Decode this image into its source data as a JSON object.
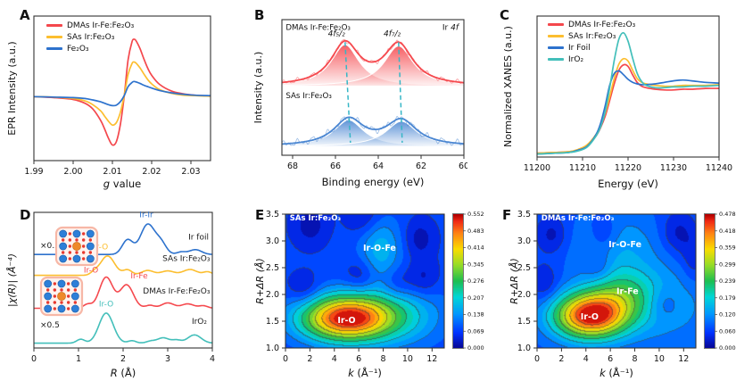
{
  "figure": {
    "background": "#ffffff"
  },
  "chart_data": [
    {
      "panel": "A",
      "type": "line",
      "xlabel_italic": "g",
      "xlabel_rest": " value",
      "ylabel": "EPR Intensity (a.u.)",
      "xlim": [
        1.99,
        2.035
      ],
      "ylim": [
        -1.35,
        1.7
      ],
      "xtick_vals": [
        1.99,
        2.0,
        2.01,
        2.02,
        2.03
      ],
      "xticks": [
        "1.99",
        "2.00",
        "2.01",
        "2.02",
        "2.03"
      ],
      "x": [
        1.99,
        1.995,
        2.0,
        2.003,
        2.005,
        2.007,
        2.008,
        2.009,
        2.01,
        2.011,
        2.012,
        2.013,
        2.014,
        2.015,
        2.0155,
        2.016,
        2.017,
        2.018,
        2.019,
        2.02,
        2.022,
        2.025,
        2.028,
        2.031,
        2.035
      ],
      "series": [
        {
          "name": "DMAs Ir-Fe:Fe₂O₃",
          "color": "#f4474c",
          "y": [
            0,
            -0.02,
            -0.06,
            -0.14,
            -0.26,
            -0.5,
            -0.68,
            -0.88,
            -1.02,
            -0.95,
            -0.6,
            0.0,
            0.78,
            1.16,
            1.21,
            1.18,
            1.02,
            0.8,
            0.6,
            0.45,
            0.26,
            0.12,
            0.06,
            0.03,
            0.01
          ]
        },
        {
          "name": "SAs Ir:Fe₂O₃",
          "color": "#fcbe2f",
          "y": [
            0,
            -0.01,
            -0.04,
            -0.09,
            -0.17,
            -0.3,
            -0.41,
            -0.52,
            -0.6,
            -0.55,
            -0.34,
            0.02,
            0.47,
            0.7,
            0.73,
            0.71,
            0.61,
            0.48,
            0.36,
            0.27,
            0.15,
            0.07,
            0.03,
            0.02,
            0.01
          ]
        },
        {
          "name": "Fe₂O₃",
          "color": "#2d72cd",
          "y": [
            0,
            -0.01,
            -0.02,
            -0.04,
            -0.07,
            -0.11,
            -0.14,
            -0.17,
            -0.19,
            -0.18,
            -0.11,
            0.02,
            0.21,
            0.3,
            0.32,
            0.31,
            0.28,
            0.24,
            0.21,
            0.18,
            0.13,
            0.08,
            0.05,
            0.03,
            0.02
          ]
        }
      ]
    },
    {
      "panel": "B",
      "type": "spectra",
      "xlabel": "Binding energy (eV)",
      "ylabel": "Intensity (a.u.)",
      "xlim": [
        68.5,
        60
      ],
      "ylim": [
        0,
        1.08
      ],
      "xtick_vals": [
        68,
        66,
        64,
        62,
        60
      ],
      "xticks": [
        "68",
        "66",
        "64",
        "62",
        "60"
      ],
      "corner_prefix": "Ir ",
      "corner_italic": "4f",
      "dash_color": "#35b6c6",
      "spectra": [
        {
          "name": "SAs Ir:Fe₂O₃",
          "color": "#4a86d2",
          "baseline": 0.07,
          "noise": 1.0,
          "peaks": [
            {
              "c": 65.38,
              "w": 0.85,
              "a": 0.21
            },
            {
              "c": 62.92,
              "w": 0.88,
              "a": 0.2
            }
          ]
        },
        {
          "name": "DMAs Ir-Fe:Fe₂O₃",
          "color": "#f5494e",
          "baseline": 0.55,
          "noise": 0.7,
          "peaks": [
            {
              "c": 65.55,
              "w": 0.8,
              "a": 0.33
            },
            {
              "c": 63.05,
              "w": 0.82,
              "a": 0.32
            }
          ]
        }
      ],
      "peak_labels": [
        {
          "text": "4f₅/₂",
          "x": 65.95,
          "y": 0.95
        },
        {
          "text": "4f₇/₂",
          "x": 63.35,
          "y": 0.95
        }
      ],
      "inner_labels": [
        {
          "text": "DMAs Ir-Fe:Fe₂O₃",
          "x": 68.32,
          "y": 1.0
        },
        {
          "text": "SAs Ir:Fe₂O₃",
          "x": 68.32,
          "y": 0.455
        }
      ],
      "dashed": [
        {
          "xt": 65.55,
          "xb": 65.3,
          "yt": 0.9,
          "yb": 0.1
        },
        {
          "xt": 63.05,
          "xb": 62.88,
          "yt": 0.9,
          "yb": 0.1
        }
      ]
    },
    {
      "panel": "C",
      "type": "line",
      "xlabel": "Energy (eV)",
      "ylabel": "Normalized XANES (a.u.)",
      "xlim": [
        11200,
        11240
      ],
      "ylim": [
        0,
        1.85
      ],
      "xtick_vals": [
        11200,
        11210,
        11220,
        11230,
        11240
      ],
      "xticks": [
        "11200",
        "11210",
        "11220",
        "11230",
        "11240"
      ],
      "x": [
        11200,
        11204,
        11207,
        11209,
        11211,
        11213,
        11214,
        11215,
        11216,
        11217,
        11218,
        11219,
        11220,
        11221,
        11222,
        11223,
        11224,
        11226,
        11228,
        11230,
        11232,
        11234,
        11237,
        11240
      ],
      "series": [
        {
          "name": "DMAs Ir-Fe:Fe₂O₃",
          "color": "#f4474c",
          "y": [
            0.05,
            0.06,
            0.07,
            0.09,
            0.15,
            0.28,
            0.39,
            0.54,
            0.75,
            0.97,
            1.14,
            1.21,
            1.19,
            1.08,
            0.98,
            0.93,
            0.91,
            0.89,
            0.88,
            0.88,
            0.89,
            0.89,
            0.9,
            0.9
          ]
        },
        {
          "name": "SAs Ir:Fe₂O₃",
          "color": "#fcbe2f",
          "y": [
            0.05,
            0.06,
            0.07,
            0.1,
            0.16,
            0.3,
            0.42,
            0.58,
            0.8,
            1.04,
            1.22,
            1.29,
            1.26,
            1.14,
            1.03,
            0.98,
            0.96,
            0.94,
            0.93,
            0.93,
            0.94,
            0.94,
            0.94,
            0.95
          ]
        },
        {
          "name": "Ir Foil",
          "color": "#2d72cd",
          "y": [
            0.04,
            0.05,
            0.06,
            0.09,
            0.14,
            0.3,
            0.45,
            0.68,
            0.95,
            1.1,
            1.13,
            1.08,
            1.02,
            0.98,
            0.96,
            0.95,
            0.95,
            0.96,
            0.98,
            1.0,
            1.01,
            1.0,
            0.98,
            0.97
          ]
        },
        {
          "name": "IrO₂",
          "color": "#43bfba",
          "y": [
            0.04,
            0.05,
            0.06,
            0.08,
            0.13,
            0.28,
            0.4,
            0.6,
            0.92,
            1.28,
            1.55,
            1.63,
            1.52,
            1.3,
            1.1,
            0.99,
            0.94,
            0.91,
            0.91,
            0.92,
            0.92,
            0.93,
            0.93,
            0.94
          ]
        }
      ]
    },
    {
      "panel": "D",
      "type": "offset-curves",
      "xlabel_italic": "R",
      "xlabel_rest": " (Å)",
      "ylabel": "|χ(R)| (Å⁻⁴)",
      "xlim": [
        0,
        4
      ],
      "ylim": [
        0,
        2.8
      ],
      "xtick_vals": [
        0,
        1,
        2,
        3,
        4
      ],
      "xticks": [
        "0",
        "1",
        "2",
        "3",
        "4"
      ],
      "series": [
        {
          "name": "IrO₂",
          "color": "#43bfba",
          "offset": 0.1,
          "peaks": [
            [
              1.05,
              0.09,
              0.08
            ],
            [
              1.62,
              0.16,
              0.62
            ],
            [
              2.2,
              0.09,
              0.05
            ],
            [
              2.62,
              0.1,
              0.04
            ],
            [
              2.9,
              0.13,
              0.11
            ],
            [
              3.2,
              0.1,
              0.06
            ],
            [
              3.6,
              0.15,
              0.17
            ]
          ]
        },
        {
          "name": "DMAs Ir-Fe:Fe₂O₃",
          "color": "#f5494e",
          "offset": 0.82,
          "peaks": [
            [
              1.2,
              0.09,
              0.08
            ],
            [
              1.62,
              0.15,
              0.64
            ],
            [
              2.08,
              0.15,
              0.48
            ],
            [
              2.6,
              0.1,
              0.06
            ],
            [
              3.0,
              0.14,
              0.11
            ],
            [
              3.45,
              0.14,
              0.09
            ],
            [
              3.8,
              0.1,
              0.05
            ]
          ]
        },
        {
          "name": "SAs Ir:Fe₂O₃",
          "color": "#fcbe2f",
          "offset": 1.5,
          "peaks": [
            [
              1.35,
              0.08,
              0.05
            ],
            [
              1.65,
              0.16,
              0.4
            ],
            [
              2.1,
              0.1,
              0.11
            ],
            [
              2.55,
              0.14,
              0.1
            ],
            [
              3.0,
              0.15,
              0.09
            ],
            [
              3.5,
              0.16,
              0.12
            ],
            [
              3.9,
              0.1,
              0.07
            ]
          ]
        },
        {
          "name": "Ir foil",
          "color": "#2d72cd",
          "offset": 1.93,
          "peaks": [
            [
              2.1,
              0.12,
              0.3
            ],
            [
              2.55,
              0.16,
              0.62
            ],
            [
              2.85,
              0.12,
              0.22
            ],
            [
              3.3,
              0.1,
              0.05
            ],
            [
              3.62,
              0.14,
              0.1
            ]
          ]
        }
      ],
      "annotations": [
        {
          "text": "×0.3",
          "x": 0.14,
          "y": 2.06,
          "color": "#1a1a1a",
          "anchor": "start"
        },
        {
          "text": "Ir-Ir",
          "x": 2.52,
          "y": 2.7,
          "color": "#2d72cd",
          "anchor": "middle"
        },
        {
          "text": "Ir foil",
          "x": 3.92,
          "y": 2.24,
          "color": "#1a1a1a",
          "anchor": "end"
        },
        {
          "text": "Ir-O",
          "x": 1.5,
          "y": 2.04,
          "color": "#fcbe2f",
          "anchor": "middle"
        },
        {
          "text": "SAs Ir:Fe₂O₃",
          "x": 3.95,
          "y": 1.8,
          "color": "#1a1a1a",
          "anchor": "end"
        },
        {
          "text": "Ir-O",
          "x": 1.28,
          "y": 1.56,
          "color": "#f5494e",
          "anchor": "middle"
        },
        {
          "text": "Ir-Fe",
          "x": 2.36,
          "y": 1.44,
          "color": "#f5494e",
          "anchor": "middle"
        },
        {
          "text": "DMAs Ir-Fe:Fe₂O₃",
          "x": 3.95,
          "y": 1.12,
          "color": "#1a1a1a",
          "anchor": "end"
        },
        {
          "text": "Ir-O",
          "x": 1.62,
          "y": 0.86,
          "color": "#43bfba",
          "anchor": "middle"
        },
        {
          "text": "IrO₂",
          "x": 3.88,
          "y": 0.5,
          "color": "#1a1a1a",
          "anchor": "end"
        },
        {
          "text": "×0.5",
          "x": 0.14,
          "y": 0.42,
          "color": "#1a1a1a",
          "anchor": "start"
        }
      ],
      "insets": [
        {
          "x": 57,
          "y": 33,
          "w": 46,
          "h": 42
        },
        {
          "x": 40,
          "y": 89,
          "w": 46,
          "h": 42
        }
      ],
      "atom_colors": {
        "fe": "#2d7fd8",
        "o": "#e8392f",
        "ir": "#ee8a2a"
      }
    },
    {
      "panel": "E",
      "type": "heatmap",
      "title": "SAs Ir:Fe₂O₃",
      "xlabel_italic": "k",
      "xlabel_rest": " (Å⁻¹)",
      "ylabel": "R+ΔR (Å)",
      "xlim": [
        0,
        13
      ],
      "ylim": [
        1.0,
        3.5
      ],
      "xtick_vals": [
        0,
        2,
        4,
        6,
        8,
        10,
        12
      ],
      "xticks": [
        "0",
        "2",
        "4",
        "6",
        "8",
        "10",
        "12"
      ],
      "ytick_vals": [
        1.0,
        1.5,
        2.0,
        2.5,
        3.0,
        3.5
      ],
      "yticks": [
        "1.0",
        "1.5",
        "2.0",
        "2.5",
        "3.0",
        "3.5"
      ],
      "zmax": 0.552,
      "base": 0.07,
      "colorbar_ticks": [
        "0.552",
        "0.483",
        "0.414",
        "0.345",
        "0.276",
        "0.207",
        "0.138",
        "0.069",
        "0.000"
      ],
      "blobs": [
        [
          5.0,
          1.55,
          2.6,
          0.3,
          0.48
        ],
        [
          9.5,
          1.62,
          2.5,
          0.4,
          0.1
        ],
        [
          7.8,
          2.85,
          1.25,
          0.42,
          0.1
        ],
        [
          1.5,
          2.08,
          0.9,
          0.22,
          -0.055
        ],
        [
          6.2,
          2.35,
          0.9,
          0.22,
          -0.05
        ],
        [
          9.2,
          2.2,
          0.9,
          0.22,
          -0.05
        ],
        [
          11.3,
          2.28,
          0.9,
          0.25,
          -0.055
        ],
        [
          2.0,
          3.3,
          1.0,
          0.28,
          -0.055
        ],
        [
          6.4,
          3.45,
          1.0,
          0.25,
          -0.05
        ],
        [
          11.0,
          3.05,
          0.9,
          0.25,
          -0.055
        ]
      ],
      "labels": [
        {
          "text": "Ir-O",
          "k": 5.0,
          "r": 1.52
        },
        {
          "text": "Ir-O-Fe",
          "k": 7.7,
          "r": 2.87
        }
      ]
    },
    {
      "panel": "F",
      "type": "heatmap",
      "title": "DMAs Ir-Fe:Fe₂O₃",
      "xlabel_italic": "k",
      "xlabel_rest": " (Å⁻¹)",
      "ylabel": "R+ΔR (Å)",
      "xlim": [
        0,
        13
      ],
      "ylim": [
        1.0,
        3.5
      ],
      "xtick_vals": [
        0,
        2,
        4,
        6,
        8,
        10,
        12
      ],
      "xticks": [
        "0",
        "2",
        "4",
        "6",
        "8",
        "10",
        "12"
      ],
      "ytick_vals": [
        1.0,
        1.5,
        2.0,
        2.5,
        3.0,
        3.5
      ],
      "yticks": [
        "1.0",
        "1.5",
        "2.0",
        "2.5",
        "3.0",
        "3.5"
      ],
      "zmax": 0.478,
      "base": 0.07,
      "colorbar_ticks": [
        "0.478",
        "0.418",
        "0.359",
        "0.299",
        "0.239",
        "0.179",
        "0.120",
        "0.060",
        "0.000"
      ],
      "blobs": [
        [
          4.4,
          1.6,
          2.1,
          0.3,
          0.41
        ],
        [
          7.0,
          2.02,
          1.9,
          0.34,
          0.12
        ],
        [
          10.5,
          1.8,
          2.5,
          0.5,
          0.06
        ],
        [
          6.5,
          2.9,
          2.6,
          0.45,
          0.06
        ],
        [
          1.2,
          3.12,
          0.9,
          0.25,
          -0.055
        ],
        [
          5.5,
          3.12,
          0.9,
          0.25,
          -0.05
        ],
        [
          11.6,
          3.15,
          1.0,
          0.28,
          -0.055
        ],
        [
          5.0,
          2.52,
          0.8,
          0.2,
          -0.045
        ],
        [
          10.4,
          1.82,
          0.9,
          0.22,
          -0.05
        ],
        [
          0.6,
          2.2,
          0.8,
          0.25,
          -0.05
        ],
        [
          12.9,
          2.65,
          0.7,
          0.3,
          -0.04
        ]
      ],
      "labels": [
        {
          "text": "Ir-O",
          "k": 4.3,
          "r": 1.58
        },
        {
          "text": "Ir-Fe",
          "k": 7.4,
          "r": 2.06
        },
        {
          "text": "Ir-O-Fe",
          "k": 7.2,
          "r": 2.93
        }
      ]
    }
  ]
}
